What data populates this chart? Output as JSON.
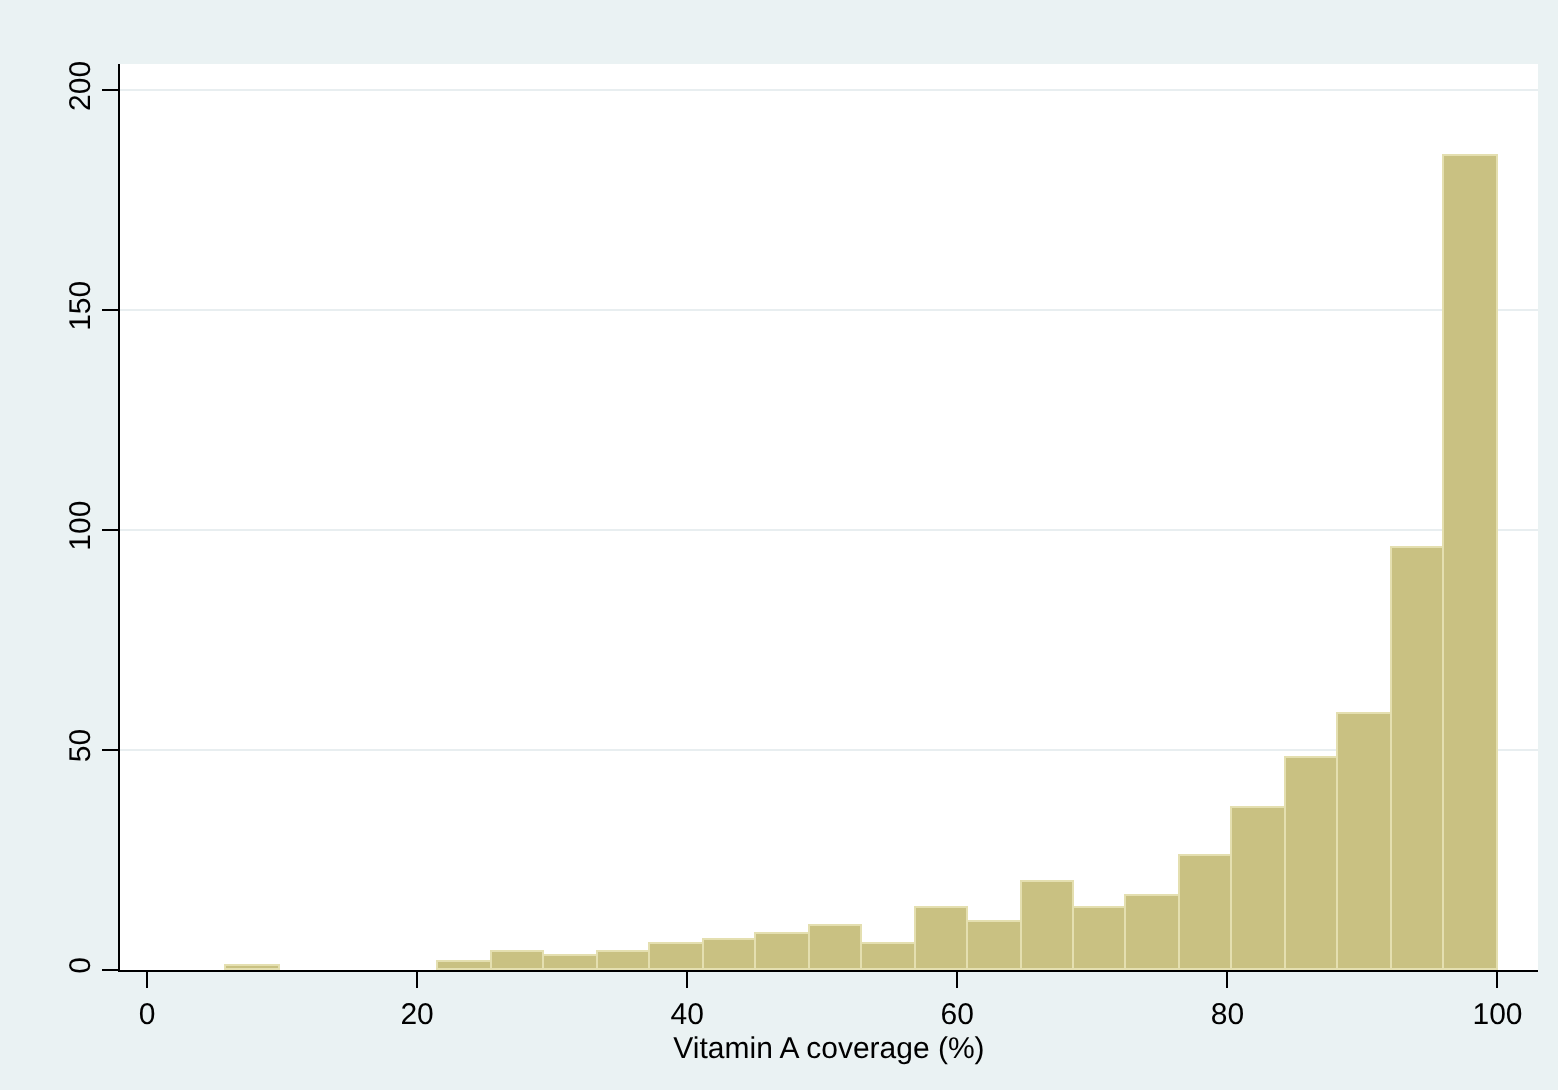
{
  "chart_data": {
    "type": "histogram",
    "xlabel": "Vitamin A coverage (%)",
    "bins": [
      5.92,
      9.84,
      13.76,
      17.68,
      21.6,
      25.52,
      29.44,
      33.36,
      37.28,
      41.2,
      45.12,
      49.04,
      52.96,
      56.88,
      60.8,
      64.72,
      68.64,
      72.56,
      76.48,
      80.4,
      84.32,
      88.24,
      92.16,
      96.08,
      100
    ],
    "values": [
      1,
      0,
      0,
      0,
      2,
      4,
      3,
      4,
      6,
      7,
      8,
      10,
      6,
      14,
      11,
      20,
      14,
      17,
      26,
      37,
      48,
      58,
      96,
      185
    ],
    "color": "#c9c182",
    "xlim": [
      -2,
      103
    ],
    "xticks": [
      0,
      20,
      40,
      60,
      80,
      100
    ],
    "ylim": [
      0,
      206
    ],
    "yticks": [
      0,
      50,
      100,
      150,
      200
    ],
    "grid": "y"
  }
}
